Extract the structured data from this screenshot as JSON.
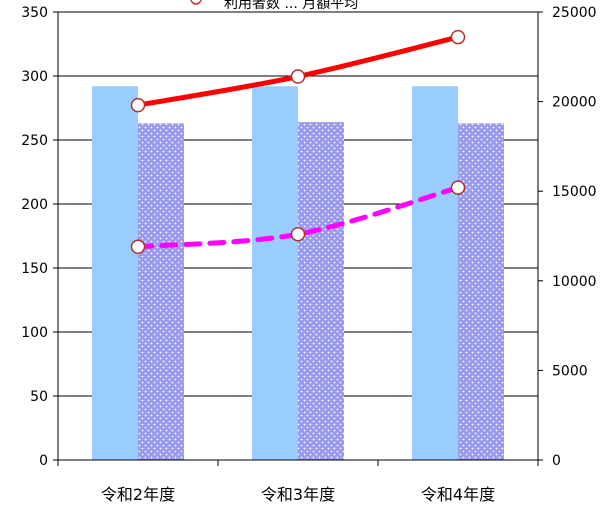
{
  "chart_data": {
    "type": "bar",
    "categories": [
      "令和2年度",
      "令和3年度",
      "令和4年度"
    ],
    "left_axis": {
      "min": 0,
      "max": 350,
      "step": 50,
      "ticks": [
        "0",
        "50",
        "100",
        "150",
        "200",
        "250",
        "300",
        "350"
      ]
    },
    "right_axis": {
      "min": 0,
      "max": 25000,
      "step": 5000,
      "ticks": [
        "0",
        "5000",
        "10000",
        "15000",
        "20000",
        "25000"
      ]
    },
    "series": [
      {
        "kind": "bar",
        "axis": "left",
        "pattern": "solid",
        "color": "#99ccff",
        "values": [
          292,
          292,
          292
        ]
      },
      {
        "kind": "bar",
        "axis": "left",
        "pattern": "dotted",
        "color": "#9999ee",
        "values": [
          263,
          264,
          263
        ]
      },
      {
        "kind": "line",
        "axis": "right",
        "style": "solid",
        "color": "#ff0000",
        "values": [
          19800,
          21400,
          23600
        ]
      },
      {
        "kind": "line",
        "axis": "right",
        "style": "dashed",
        "color": "#ff00ff",
        "values": [
          11900,
          12600,
          15200
        ]
      }
    ],
    "legend_text": "利用者数 ... 月額平均",
    "grid": true
  }
}
